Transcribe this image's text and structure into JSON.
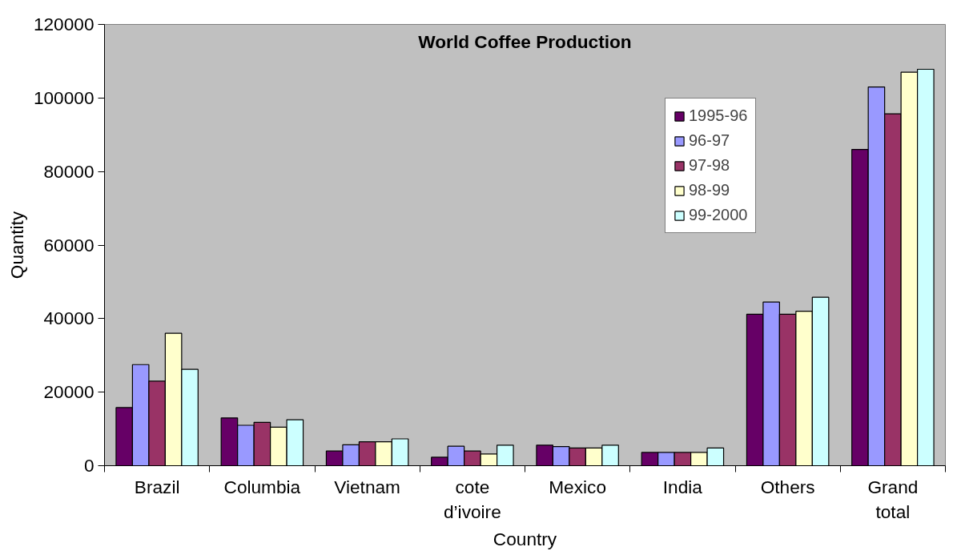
{
  "chart_data": {
    "type": "bar",
    "title": "World Coffee Production",
    "xlabel": "Country",
    "ylabel": "Quantity",
    "categories": [
      "Brazil",
      "Columbia",
      "Vietnam",
      "cote\nd’ivoire",
      "Mexico",
      "India",
      "Others",
      "Grand\ntotal"
    ],
    "series": [
      {
        "name": "1995-96",
        "color": "#660066",
        "values": [
          15800,
          13000,
          4000,
          2300,
          5600,
          3600,
          41200,
          86000
        ]
      },
      {
        "name": "96-97",
        "color": "#9999ff",
        "values": [
          27500,
          11000,
          5700,
          5300,
          5200,
          3600,
          44500,
          103000
        ]
      },
      {
        "name": "97-98",
        "color": "#993366",
        "values": [
          23000,
          11800,
          6500,
          4000,
          4800,
          3600,
          41200,
          95700
        ]
      },
      {
        "name": "98-99",
        "color": "#ffffcc",
        "values": [
          36000,
          10500,
          6500,
          3200,
          4800,
          3600,
          42000,
          107000
        ]
      },
      {
        "name": "99-2000",
        "color": "#ccffff",
        "values": [
          26200,
          12500,
          7300,
          5600,
          5600,
          4800,
          45800,
          107800
        ]
      }
    ],
    "ylim": [
      0,
      120000
    ],
    "yticks": [
      0,
      20000,
      40000,
      60000,
      80000,
      100000,
      120000
    ],
    "grid": false,
    "legend": "top right"
  }
}
